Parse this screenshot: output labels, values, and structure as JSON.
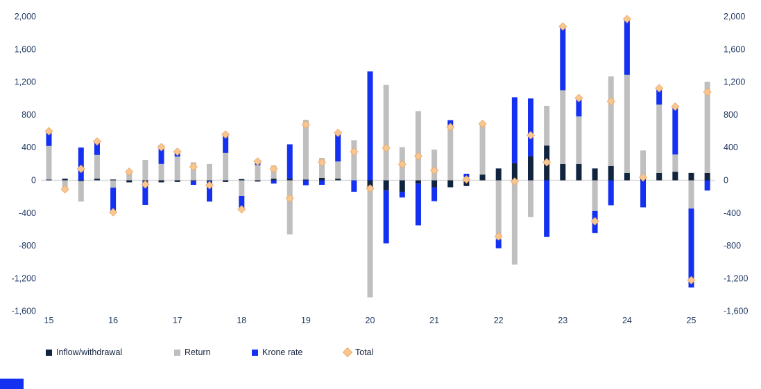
{
  "colors": {
    "inflow": "#10233f",
    "return": "#bfbfbf",
    "krone": "#1430f0",
    "total_fill": "#f8c691",
    "total_edge": "#efa964",
    "axis_text": "#203864",
    "zero_line": "#d9d9d9",
    "footer_accent": "#1430f0"
  },
  "chart_data": {
    "type": "bar",
    "subtype": "stacked-with-total-marker",
    "title": "",
    "unit_hint": "",
    "categories": [
      "15Q1",
      "15Q2",
      "15Q3",
      "15Q4",
      "16Q1",
      "16Q2",
      "16Q3",
      "16Q4",
      "17Q1",
      "17Q2",
      "17Q3",
      "17Q4",
      "18Q1",
      "18Q2",
      "18Q3",
      "18Q4",
      "19Q1",
      "19Q2",
      "19Q3",
      "19Q4",
      "20Q1",
      "20Q2",
      "20Q3",
      "20Q4",
      "21Q1",
      "21Q2",
      "21Q3",
      "21Q4",
      "22Q1",
      "22Q2",
      "22Q3",
      "22Q4",
      "23Q1",
      "23Q2",
      "23Q3",
      "23Q4",
      "24Q1",
      "24Q2",
      "24Q3",
      "24Q4",
      "25Q1",
      "25Q2"
    ],
    "series": [
      {
        "name": "Inflow/withdrawal",
        "role": "stacked-bar",
        "color_key": "inflow",
        "values": [
          10,
          20,
          -10,
          20,
          10,
          -25,
          -15,
          -25,
          -20,
          -10,
          -10,
          -20,
          15,
          -15,
          20,
          20,
          10,
          30,
          20,
          0,
          -100,
          -125,
          -140,
          -40,
          -85,
          -85,
          -70,
          70,
          145,
          210,
          295,
          425,
          200,
          200,
          145,
          175,
          90,
          50,
          90,
          105,
          90,
          90
        ]
      },
      {
        "name": "Return",
        "role": "stacked-bar",
        "color_key": "return",
        "values": [
          410,
          -90,
          -250,
          290,
          -90,
          130,
          250,
          200,
          290,
          220,
          200,
          335,
          -190,
          185,
          160,
          -660,
          730,
          245,
          210,
          490,
          -1330,
          1165,
          405,
          845,
          375,
          665,
          40,
          600,
          -720,
          -1030,
          -450,
          485,
          900,
          580,
          -375,
          1095,
          1200,
          315,
          835,
          210,
          -345,
          1115
        ]
      },
      {
        "name": "Krone rate",
        "role": "stacked-bar",
        "color_key": "krone",
        "values": [
          180,
          -40,
          400,
          165,
          -310,
          0,
          -285,
          230,
          80,
          -45,
          -250,
          245,
          -180,
          60,
          -40,
          420,
          -60,
          -55,
          350,
          -140,
          1330,
          -645,
          -70,
          -510,
          -170,
          70,
          40,
          20,
          -110,
          805,
          705,
          -690,
          780,
          225,
          -270,
          -305,
          680,
          -330,
          200,
          585,
          -965,
          -125
        ]
      },
      {
        "name": "Total",
        "role": "marker",
        "color_key": "total",
        "values": [
          600,
          -110,
          140,
          475,
          -390,
          105,
          -50,
          405,
          350,
          165,
          -60,
          560,
          -355,
          230,
          140,
          -220,
          680,
          220,
          580,
          350,
          -100,
          395,
          195,
          295,
          120,
          650,
          10,
          690,
          -685,
          -15,
          550,
          220,
          1880,
          1005,
          -500,
          965,
          1970,
          35,
          1125,
          900,
          -1220,
          1080
        ]
      }
    ],
    "x_year_labels": [
      "15",
      "16",
      "17",
      "18",
      "19",
      "20",
      "21",
      "22",
      "23",
      "24",
      "25"
    ],
    "y_ticks": [
      2000,
      1600,
      1200,
      800,
      400,
      0,
      -400,
      -800,
      -1200,
      -1600
    ],
    "y_tick_labels": [
      "2,000",
      "1,600",
      "1,200",
      "800",
      "400",
      "0",
      "-400",
      "-800",
      "-1,200",
      "-1,600"
    ],
    "ylim": [
      -1600,
      2000
    ],
    "grid": "zero-line-only",
    "axis_sides": "left-and-right",
    "legend_position": "bottom-left"
  },
  "legend": {
    "items": [
      {
        "label": "Inflow/withdrawal"
      },
      {
        "label": "Return"
      },
      {
        "label": "Krone rate"
      },
      {
        "label": "Total"
      }
    ]
  }
}
